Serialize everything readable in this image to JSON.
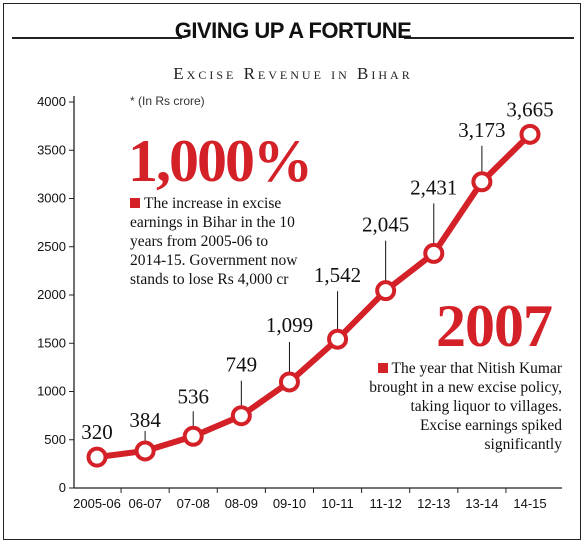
{
  "header": {
    "title": "GIVING UP A FORTUNE",
    "subtitle": "Excise Revenue in Bihar",
    "unit_note": "* (In Rs crore)"
  },
  "callout_1000": {
    "figure": "1,000%",
    "text": "The increase in excise earnings in Bihar in the 10 years from 2005-06 to 2014-15. Government now stands to lose Rs 4,000 cr"
  },
  "callout_2007": {
    "figure": "2007",
    "text": "The year that Nitish Kumar brought in a new excise policy, taking liquor to villages. Excise earnings spiked significantly"
  },
  "colors": {
    "line": "#d42027",
    "accent": "#d42027",
    "axis": "#222222"
  },
  "chart_data": {
    "type": "line",
    "categories": [
      "2005-06",
      "06-07",
      "07-08",
      "08-09",
      "09-10",
      "10-11",
      "11-12",
      "12-13",
      "13-14",
      "14-15"
    ],
    "values": [
      320,
      384,
      536,
      749,
      1099,
      1542,
      2045,
      2431,
      3173,
      3665
    ],
    "value_labels": [
      "320",
      "384",
      "536",
      "749",
      "1,099",
      "1,542",
      "2,045",
      "2,431",
      "3,173",
      "3,665"
    ],
    "yticks": [
      0,
      500,
      1000,
      1500,
      2000,
      2500,
      3000,
      3500,
      4000
    ],
    "ylim": [
      0,
      4000
    ],
    "grid": false,
    "legend": "none"
  }
}
